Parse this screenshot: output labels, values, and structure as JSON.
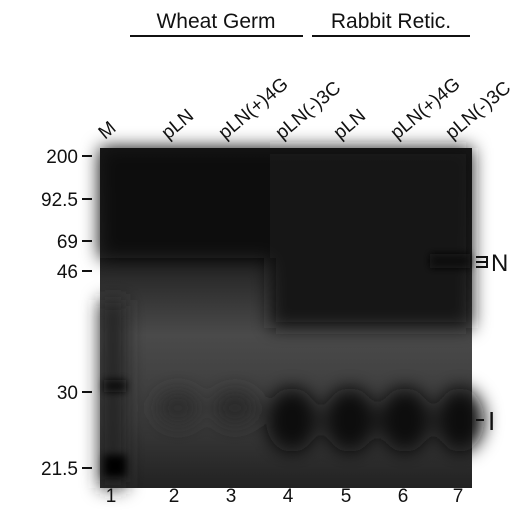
{
  "groups": [
    {
      "label": "Wheat Germ"
    },
    {
      "label": "Rabbit Retic."
    }
  ],
  "lanes": [
    {
      "label": "M",
      "number": 1
    },
    {
      "label": "pLN",
      "number": 2
    },
    {
      "label": "pLN(+)4G",
      "number": 3
    },
    {
      "label": "pLN(-)3C",
      "number": 4
    },
    {
      "label": "pLN",
      "number": 5
    },
    {
      "label": "pLN(+)4G",
      "number": 6
    },
    {
      "label": "pLN(-)3C",
      "number": 7
    }
  ],
  "markers": [
    "200",
    "92.5",
    "69",
    "46",
    "30",
    "21.5"
  ],
  "bands": [
    "N",
    "I"
  ]
}
